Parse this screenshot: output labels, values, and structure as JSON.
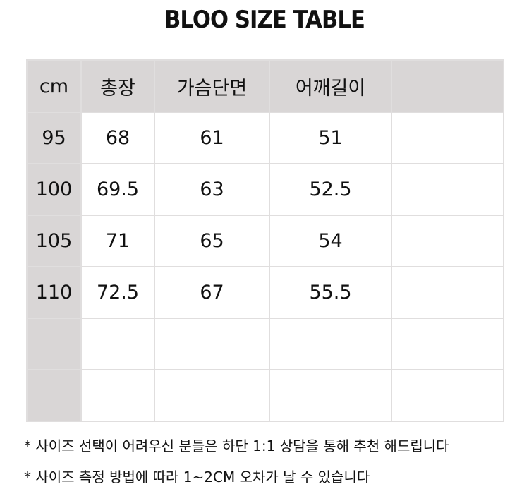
{
  "title": "BLOO SIZE TABLE",
  "table": {
    "headers": [
      "cm",
      "총장",
      "가슴단면",
      "어깨길이",
      ""
    ],
    "rows": [
      [
        "95",
        "68",
        "61",
        "51",
        ""
      ],
      [
        "100",
        "69.5",
        "63",
        "52.5",
        ""
      ],
      [
        "105",
        "71",
        "65",
        "54",
        ""
      ],
      [
        "110",
        "72.5",
        "67",
        "55.5",
        ""
      ],
      [
        "",
        "",
        "",
        "",
        ""
      ],
      [
        "",
        "",
        "",
        "",
        ""
      ]
    ]
  },
  "notes": [
    "* 사이즈 선택이 어려우신 분들은 하단 1:1 상담을 통해 추천 해드립니다",
    "* 사이즈 측정 방법에 따라 1~2CM 오차가 날 수 있습니다"
  ],
  "colors": {
    "header_bg": "#d9d6d6",
    "border": "#e0dede"
  }
}
